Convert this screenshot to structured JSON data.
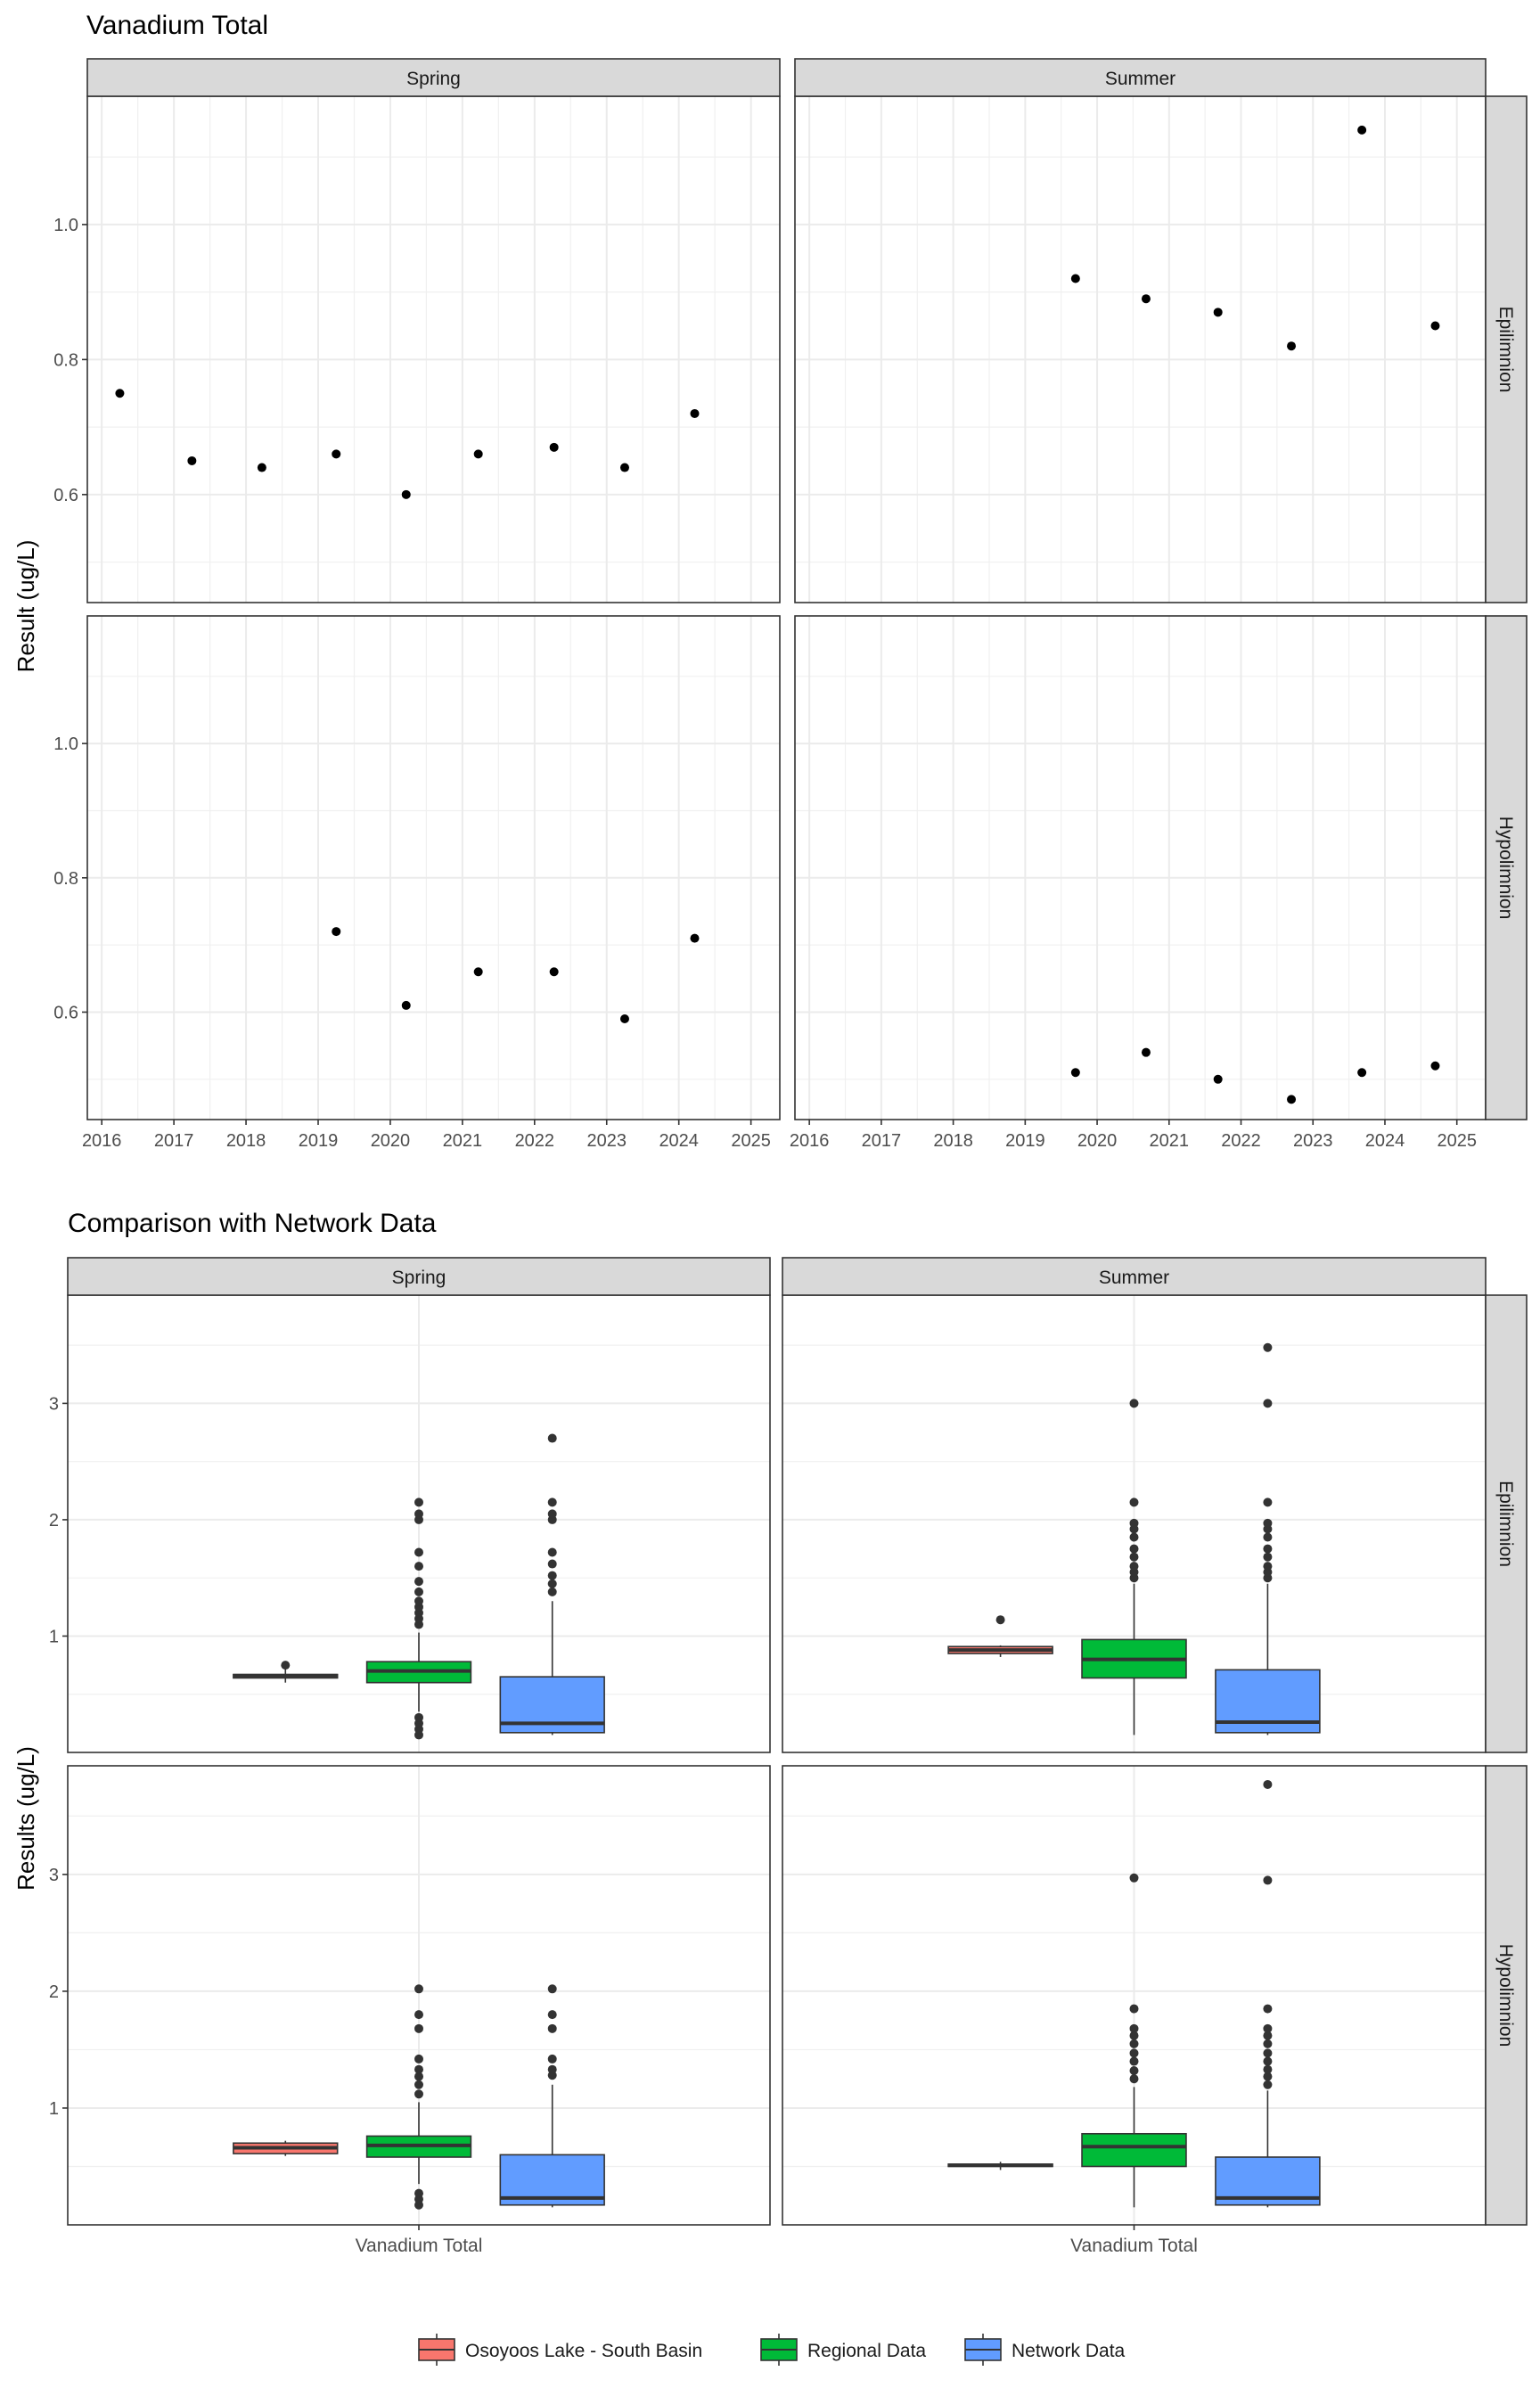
{
  "chart_data": [
    {
      "type": "scatter",
      "title": "Vanadium Total",
      "xlabel": "",
      "ylabel": "Result (ug/L)",
      "xlim": [
        2015.8,
        2025.4
      ],
      "ylim": [
        0.44,
        1.19
      ],
      "x_ticks": [
        "2016",
        "2017",
        "2018",
        "2019",
        "2020",
        "2021",
        "2022",
        "2023",
        "2024",
        "2025"
      ],
      "y_ticks": [
        "0.6",
        "0.8",
        "1.0"
      ],
      "columns": [
        "Spring",
        "Summer"
      ],
      "rows": [
        "Epilimnion",
        "Hypolimnion"
      ],
      "grid": true,
      "panels": [
        {
          "season": "Spring",
          "layer": "Epilimnion",
          "x": [
            2016.25,
            2017.25,
            2018.22,
            2019.25,
            2020.22,
            2021.22,
            2022.27,
            2023.25,
            2024.22
          ],
          "y": [
            0.75,
            0.65,
            0.64,
            0.66,
            0.6,
            0.66,
            0.67,
            0.64,
            0.72
          ]
        },
        {
          "season": "Summer",
          "layer": "Epilimnion",
          "x": [
            2019.7,
            2020.68,
            2021.68,
            2022.7,
            2023.68,
            2024.7
          ],
          "y": [
            0.92,
            0.89,
            0.87,
            0.82,
            1.14,
            0.85
          ]
        },
        {
          "season": "Spring",
          "layer": "Hypolimnion",
          "x": [
            2019.25,
            2020.22,
            2021.22,
            2022.27,
            2023.25,
            2024.22
          ],
          "y": [
            0.72,
            0.61,
            0.66,
            0.66,
            0.59,
            0.71
          ]
        },
        {
          "season": "Summer",
          "layer": "Hypolimnion",
          "x": [
            2019.7,
            2020.68,
            2021.68,
            2022.7,
            2023.68,
            2024.7
          ],
          "y": [
            0.51,
            0.54,
            0.5,
            0.47,
            0.51,
            0.52
          ]
        }
      ]
    },
    {
      "type": "boxplot",
      "title": "Comparison with Network Data",
      "xlabel": "",
      "ylabel": "Results (ug/L)",
      "categories": [
        "Vanadium Total"
      ],
      "ylim": [
        0.0,
        3.93
      ],
      "y_ticks": [
        "1",
        "2",
        "3"
      ],
      "columns": [
        "Spring",
        "Summer"
      ],
      "rows": [
        "Epilimnion",
        "Hypolimnion"
      ],
      "legend_position": "bottom",
      "series": [
        {
          "name": "Osoyoos Lake - South Basin",
          "color": "#F8766D"
        },
        {
          "name": "Regional Data",
          "color": "#00BA38"
        },
        {
          "name": "Network Data",
          "color": "#619CFF"
        }
      ],
      "panels": [
        {
          "season": "Spring",
          "layer": "Epilimnion",
          "boxes": [
            {
              "series": "Osoyoos Lake - South Basin",
              "whisker_low": 0.6,
              "q1": 0.64,
              "median": 0.66,
              "q3": 0.67,
              "whisker_high": 0.72,
              "outliers": [
                0.75
              ]
            },
            {
              "series": "Regional Data",
              "whisker_low": 0.35,
              "q1": 0.6,
              "median": 0.7,
              "q3": 0.78,
              "whisker_high": 1.03,
              "outliers": [
                0.15,
                0.2,
                0.25,
                0.3,
                1.1,
                1.15,
                1.2,
                1.25,
                1.3,
                1.38,
                1.47,
                1.6,
                1.72,
                2.0,
                2.05,
                2.15
              ]
            },
            {
              "series": "Network Data",
              "whisker_low": 0.15,
              "q1": 0.17,
              "median": 0.25,
              "q3": 0.65,
              "whisker_high": 1.3,
              "outliers": [
                1.38,
                1.45,
                1.52,
                1.62,
                1.72,
                2.0,
                2.05,
                2.15,
                2.7
              ]
            }
          ]
        },
        {
          "season": "Summer",
          "layer": "Epilimnion",
          "boxes": [
            {
              "series": "Osoyoos Lake - South Basin",
              "whisker_low": 0.82,
              "q1": 0.85,
              "median": 0.88,
              "q3": 0.91,
              "whisker_high": 0.92,
              "outliers": [
                1.14
              ]
            },
            {
              "series": "Regional Data",
              "whisker_low": 0.15,
              "q1": 0.64,
              "median": 0.8,
              "q3": 0.97,
              "whisker_high": 1.45,
              "outliers": [
                1.5,
                1.55,
                1.6,
                1.68,
                1.75,
                1.85,
                1.92,
                1.97,
                2.15,
                3.0
              ]
            },
            {
              "series": "Network Data",
              "whisker_low": 0.15,
              "q1": 0.17,
              "median": 0.26,
              "q3": 0.71,
              "whisker_high": 1.45,
              "outliers": [
                1.5,
                1.55,
                1.6,
                1.68,
                1.75,
                1.85,
                1.92,
                1.97,
                2.15,
                3.0,
                3.48
              ]
            }
          ]
        },
        {
          "season": "Spring",
          "layer": "Hypolimnion",
          "boxes": [
            {
              "series": "Osoyoos Lake - South Basin",
              "whisker_low": 0.59,
              "q1": 0.61,
              "median": 0.66,
              "q3": 0.7,
              "whisker_high": 0.72,
              "outliers": []
            },
            {
              "series": "Regional Data",
              "whisker_low": 0.35,
              "q1": 0.58,
              "median": 0.68,
              "q3": 0.76,
              "whisker_high": 1.05,
              "outliers": [
                0.17,
                0.22,
                0.27,
                1.12,
                1.2,
                1.27,
                1.33,
                1.42,
                1.68,
                1.8,
                2.02
              ]
            },
            {
              "series": "Network Data",
              "whisker_low": 0.15,
              "q1": 0.17,
              "median": 0.23,
              "q3": 0.6,
              "whisker_high": 1.2,
              "outliers": [
                1.28,
                1.33,
                1.42,
                1.68,
                1.8,
                2.02
              ]
            }
          ]
        },
        {
          "season": "Summer",
          "layer": "Hypolimnion",
          "boxes": [
            {
              "series": "Osoyoos Lake - South Basin",
              "whisker_low": 0.47,
              "q1": 0.5,
              "median": 0.51,
              "q3": 0.52,
              "whisker_high": 0.54,
              "outliers": []
            },
            {
              "series": "Regional Data",
              "whisker_low": 0.15,
              "q1": 0.5,
              "median": 0.67,
              "q3": 0.78,
              "whisker_high": 1.18,
              "outliers": [
                1.25,
                1.32,
                1.4,
                1.47,
                1.55,
                1.62,
                1.68,
                1.85,
                2.97
              ]
            },
            {
              "series": "Network Data",
              "whisker_low": 0.15,
              "q1": 0.17,
              "median": 0.23,
              "q3": 0.58,
              "whisker_high": 1.15,
              "outliers": [
                1.2,
                1.27,
                1.33,
                1.4,
                1.47,
                1.55,
                1.62,
                1.68,
                1.85,
                2.95,
                3.77
              ]
            }
          ]
        }
      ]
    }
  ]
}
